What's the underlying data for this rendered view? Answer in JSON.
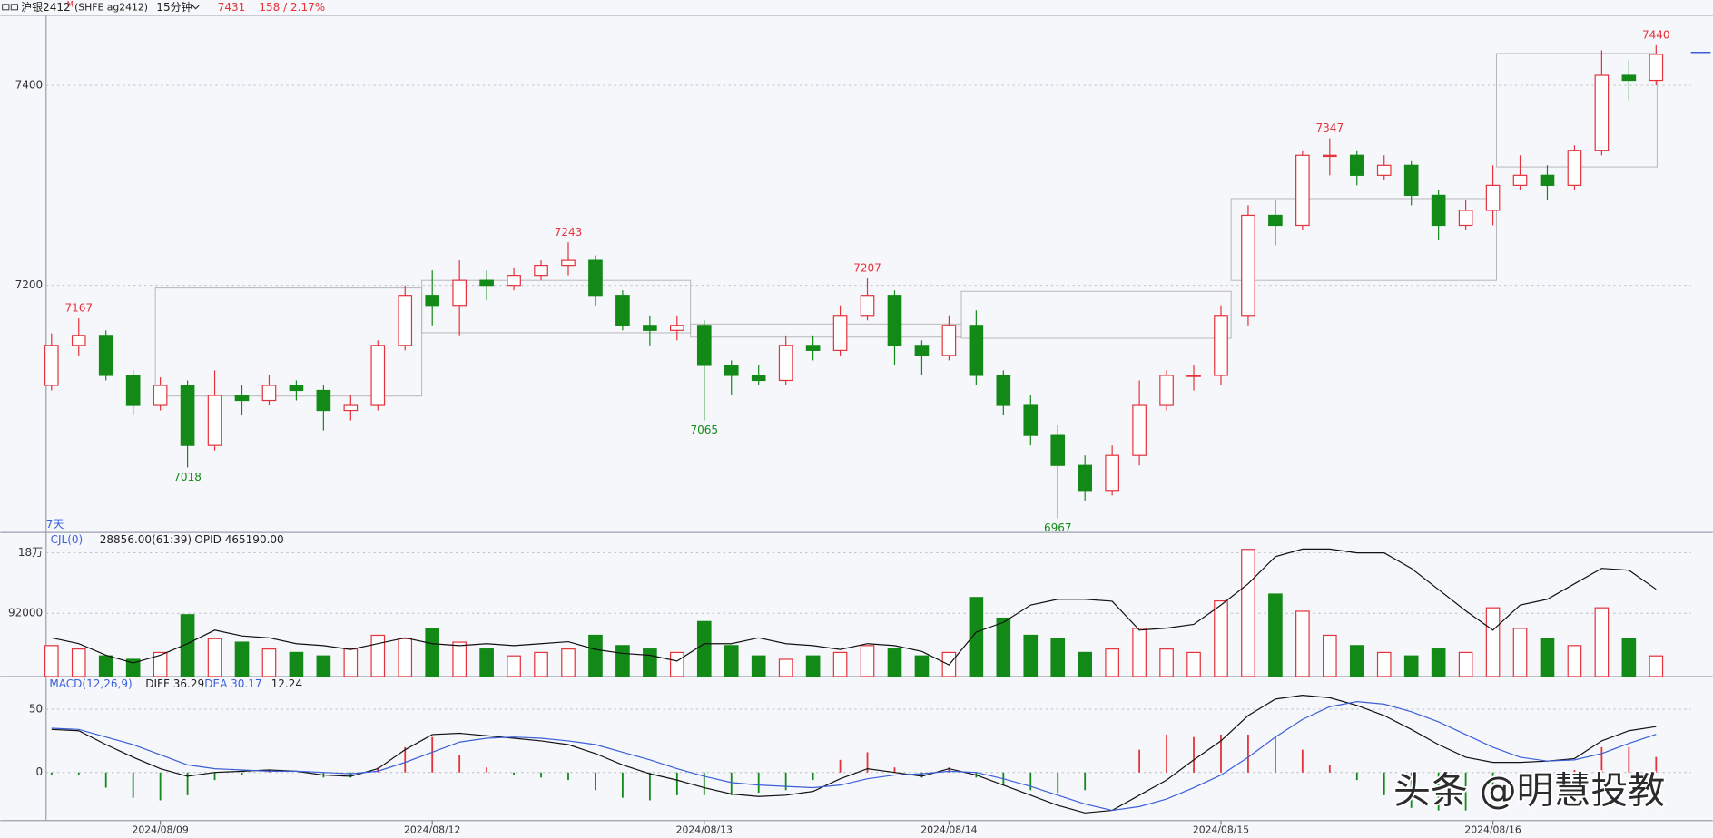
{
  "chart_data": [
    {
      "type": "candlestick",
      "title": "沪银2412",
      "title_sup": "M",
      "symbol": "(SHFE ag2412)",
      "period": "15分钟",
      "change": "158 / 2.17%",
      "corner_label": "7天",
      "up_color": "#e5323b",
      "down_color": "#138a17",
      "ylim": [
        6953,
        7470
      ],
      "yticks": [
        7200,
        7400
      ],
      "grid": true,
      "high_marks": [
        1,
        19,
        30,
        47,
        59
      ],
      "low_marks": [
        5,
        24,
        37
      ],
      "ohlc": [
        [
          7100,
          7152,
          7095,
          7140
        ],
        [
          7140,
          7167,
          7130,
          7150
        ],
        [
          7150,
          7155,
          7105,
          7110
        ],
        [
          7110,
          7115,
          7070,
          7080
        ],
        [
          7080,
          7108,
          7075,
          7100
        ],
        [
          7100,
          7105,
          7018,
          7040
        ],
        [
          7040,
          7115,
          7035,
          7090
        ],
        [
          7090,
          7100,
          7070,
          7085
        ],
        [
          7085,
          7110,
          7080,
          7100
        ],
        [
          7100,
          7105,
          7085,
          7095
        ],
        [
          7095,
          7100,
          7055,
          7075
        ],
        [
          7075,
          7090,
          7065,
          7080
        ],
        [
          7080,
          7145,
          7075,
          7140
        ],
        [
          7140,
          7200,
          7135,
          7190
        ],
        [
          7190,
          7215,
          7160,
          7180
        ],
        [
          7180,
          7225,
          7150,
          7205
        ],
        [
          7205,
          7215,
          7185,
          7200
        ],
        [
          7200,
          7218,
          7195,
          7210
        ],
        [
          7210,
          7225,
          7205,
          7220
        ],
        [
          7220,
          7243,
          7210,
          7225
        ],
        [
          7225,
          7230,
          7180,
          7190
        ],
        [
          7190,
          7195,
          7155,
          7160
        ],
        [
          7160,
          7170,
          7140,
          7155
        ],
        [
          7155,
          7170,
          7145,
          7160
        ],
        [
          7160,
          7165,
          7065,
          7120
        ],
        [
          7120,
          7125,
          7090,
          7110
        ],
        [
          7110,
          7120,
          7100,
          7105
        ],
        [
          7105,
          7150,
          7100,
          7140
        ],
        [
          7140,
          7150,
          7125,
          7135
        ],
        [
          7135,
          7180,
          7130,
          7170
        ],
        [
          7170,
          7207,
          7165,
          7190
        ],
        [
          7190,
          7195,
          7120,
          7140
        ],
        [
          7140,
          7145,
          7110,
          7130
        ],
        [
          7130,
          7170,
          7125,
          7160
        ],
        [
          7160,
          7175,
          7100,
          7110
        ],
        [
          7110,
          7115,
          7070,
          7080
        ],
        [
          7080,
          7090,
          7040,
          7050
        ],
        [
          7050,
          7060,
          6967,
          7020
        ],
        [
          7020,
          7030,
          6985,
          6995
        ],
        [
          6995,
          7040,
          6990,
          7030
        ],
        [
          7030,
          7105,
          7020,
          7080
        ],
        [
          7080,
          7115,
          7075,
          7110
        ],
        [
          7110,
          7120,
          7095,
          7110
        ],
        [
          7110,
          7180,
          7100,
          7170
        ],
        [
          7170,
          7280,
          7160,
          7270
        ],
        [
          7270,
          7285,
          7240,
          7260
        ],
        [
          7260,
          7335,
          7255,
          7330
        ],
        [
          7330,
          7347,
          7310,
          7330
        ],
        [
          7330,
          7335,
          7300,
          7310
        ],
        [
          7310,
          7330,
          7305,
          7320
        ],
        [
          7320,
          7325,
          7280,
          7290
        ],
        [
          7290,
          7295,
          7245,
          7260
        ],
        [
          7260,
          7285,
          7255,
          7275
        ],
        [
          7275,
          7320,
          7260,
          7300
        ],
        [
          7300,
          7330,
          7295,
          7310
        ],
        [
          7310,
          7320,
          7285,
          7300
        ],
        [
          7300,
          7340,
          7295,
          7335
        ],
        [
          7335,
          7435,
          7330,
          7410
        ],
        [
          7410,
          7425,
          7385,
          7405
        ],
        [
          7405,
          7440,
          7400,
          7431
        ]
      ]
    },
    {
      "type": "volume",
      "title": "CJL(0)",
      "subtitle": "28856.00(61:39)",
      "ylim": [
        0,
        208000
      ],
      "yticks": [
        92000,
        {
          "value": 180000,
          "label": "18万"
        }
      ],
      "grid": true,
      "values": [
        45000,
        40000,
        30000,
        25000,
        35000,
        90000,
        55000,
        50000,
        40000,
        35000,
        30000,
        40000,
        60000,
        55000,
        70000,
        50000,
        40000,
        30000,
        35000,
        40000,
        60000,
        45000,
        40000,
        35000,
        80000,
        45000,
        30000,
        25000,
        30000,
        35000,
        45000,
        40000,
        30000,
        35000,
        115000,
        85000,
        60000,
        55000,
        35000,
        40000,
        70000,
        40000,
        35000,
        110000,
        185000,
        120000,
        95000,
        60000,
        45000,
        35000,
        30000,
        40000,
        35000,
        100000,
        70000,
        55000,
        45000,
        100000,
        55000,
        30000
      ],
      "y2lim": [
        420000,
        494000
      ],
      "series": [
        {
          "name": "OPID 465190.00",
          "color": "#111111",
          "axis": "y2",
          "values": [
            440000,
            437000,
            431000,
            427000,
            431000,
            437000,
            444000,
            441000,
            440000,
            437000,
            436000,
            434000,
            437000,
            440000,
            437000,
            436000,
            437000,
            436000,
            437000,
            438000,
            434000,
            432000,
            431000,
            428000,
            437000,
            437000,
            440000,
            437000,
            436000,
            434000,
            437000,
            436000,
            433000,
            426000,
            443000,
            448000,
            457000,
            460000,
            460000,
            459000,
            444000,
            445000,
            447000,
            457000,
            468000,
            482000,
            486000,
            486000,
            484000,
            484000,
            476000,
            465000,
            454000,
            444000,
            457000,
            460000,
            468000,
            476000,
            475000,
            465190
          ]
        }
      ]
    },
    {
      "type": "macd",
      "title": "MACD(12,26,9)",
      "ylim": [
        -38,
        75
      ],
      "yticks": [
        0,
        50
      ],
      "grid": true,
      "categories": [
        null,
        null,
        null,
        null,
        "2024/08/09",
        null,
        null,
        null,
        null,
        null,
        null,
        null,
        null,
        null,
        "2024/08/12",
        null,
        null,
        null,
        null,
        null,
        null,
        null,
        null,
        null,
        "2024/08/13",
        null,
        null,
        null,
        null,
        null,
        null,
        null,
        null,
        "2024/08/14",
        null,
        null,
        null,
        null,
        null,
        null,
        null,
        null,
        null,
        "2024/08/15",
        null,
        null,
        null,
        null,
        null,
        null,
        null,
        null,
        null,
        "2024/08/16",
        null,
        null,
        null,
        null,
        null,
        null
      ],
      "series": [
        {
          "name": "DIFF 36.29",
          "color": "#111111",
          "values": [
            34,
            33,
            22,
            12,
            3,
            -3,
            0,
            1,
            2,
            1,
            -2,
            -3,
            3,
            18,
            30,
            31,
            29,
            27,
            25,
            22,
            15,
            6,
            -1,
            -6,
            -12,
            -17,
            -19,
            -18,
            -15,
            -5,
            3,
            0,
            -3,
            3,
            -2,
            -10,
            -18,
            -26,
            -32,
            -30,
            -18,
            -6,
            10,
            25,
            45,
            58,
            61,
            59,
            53,
            45,
            34,
            22,
            12,
            8,
            8,
            9,
            11,
            25,
            33,
            36.29
          ]
        },
        {
          "name": "DEA 30.17",
          "color": "#3a5fd8",
          "values": [
            35,
            34,
            28,
            22,
            14,
            6,
            3,
            2,
            1,
            1,
            0,
            -1,
            1,
            8,
            16,
            24,
            27,
            28,
            27,
            25,
            22,
            16,
            10,
            3,
            -3,
            -8,
            -10,
            -11,
            -12,
            -10,
            -5,
            -2,
            -1,
            1,
            0,
            -5,
            -11,
            -18,
            -25,
            -30,
            -27,
            -21,
            -12,
            -2,
            12,
            28,
            42,
            52,
            56,
            54,
            48,
            40,
            30,
            20,
            12,
            9,
            10,
            15,
            23,
            30.17
          ]
        },
        {
          "name": "12.24",
          "color": "#e5323b",
          "values": [
            -2,
            -2,
            -12,
            -20,
            -22,
            -18,
            -6,
            -2,
            2,
            0,
            -4,
            -4,
            4,
            20,
            28,
            14,
            4,
            -2,
            -4,
            -6,
            -14,
            -20,
            -22,
            -18,
            -18,
            -18,
            -16,
            -14,
            -6,
            10,
            16,
            4,
            -4,
            4,
            -4,
            -10,
            -14,
            -16,
            -14,
            0,
            18,
            30,
            28,
            30,
            30,
            28,
            18,
            6,
            -6,
            -18,
            -28,
            -30,
            -30,
            -18,
            -8,
            0,
            2,
            20,
            20,
            12.24
          ]
        }
      ]
    },
    {
      "watermark": "头条 @明慧投教"
    }
  ]
}
